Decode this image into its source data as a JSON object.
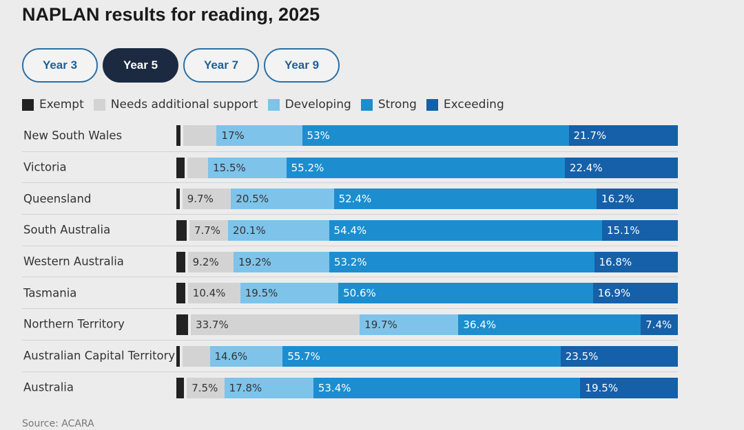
{
  "title": "NAPLAN results for reading, 2025",
  "tabs": [
    {
      "label": "Year 3",
      "active": false
    },
    {
      "label": "Year 5",
      "active": true
    },
    {
      "label": "Year 7",
      "active": false
    },
    {
      "label": "Year 9",
      "active": false
    }
  ],
  "source": "Source: ACARA",
  "colors": {
    "exempt": "#222222",
    "needs": "#d3d3d3",
    "developing": "#7ec3ea",
    "strong": "#1c8ecf",
    "exceeding": "#1560a8",
    "dark_text": "#333333",
    "light_text": "#ffffff"
  },
  "chart_data": {
    "type": "bar",
    "orientation": "horizontal",
    "stacked": true,
    "normalized": true,
    "title": "NAPLAN results for reading, 2025",
    "legend": [
      {
        "key": "exempt",
        "label": "Exempt"
      },
      {
        "key": "needs",
        "label": "Needs additional support"
      },
      {
        "key": "developing",
        "label": "Developing"
      },
      {
        "key": "strong",
        "label": "Strong"
      },
      {
        "key": "exceeding",
        "label": "Exceeding"
      }
    ],
    "categories": [
      "New South Wales",
      "Victoria",
      "Queensland",
      "South Australia",
      "Western Australia",
      "Tasmania",
      "Northern Territory",
      "Australian Capital Territory",
      "Australia"
    ],
    "series": [
      {
        "key": "exempt",
        "name": "Exempt",
        "values": [
          1.4,
          2.2,
          1.2,
          2.6,
          2.3,
          2.3,
          2.9,
          1.2,
          2.1
        ],
        "labels": [
          "",
          "",
          "",
          "",
          "",
          "",
          "",
          "",
          ""
        ]
      },
      {
        "key": "needs",
        "name": "Needs additional support",
        "values": [
          6.6,
          4.1,
          9.7,
          7.7,
          9.2,
          10.4,
          33.7,
          5.5,
          7.5
        ],
        "labels": [
          "",
          "",
          "9.7%",
          "7.7%",
          "9.2%",
          "10.4%",
          "33.7%",
          "",
          "7.5%"
        ]
      },
      {
        "key": "developing",
        "name": "Developing",
        "values": [
          17.0,
          15.5,
          20.5,
          20.1,
          19.2,
          19.5,
          19.7,
          14.6,
          17.8
        ],
        "labels": [
          "17%",
          "15.5%",
          "20.5%",
          "20.1%",
          "19.2%",
          "19.5%",
          "19.7%",
          "14.6%",
          "17.8%"
        ]
      },
      {
        "key": "strong",
        "name": "Strong",
        "values": [
          53.0,
          55.2,
          52.4,
          54.4,
          53.2,
          50.6,
          36.4,
          55.7,
          53.4
        ],
        "labels": [
          "53%",
          "55.2%",
          "52.4%",
          "54.4%",
          "53.2%",
          "50.6%",
          "36.4%",
          "55.7%",
          "53.4%"
        ]
      },
      {
        "key": "exceeding",
        "name": "Exceeding",
        "values": [
          21.7,
          22.4,
          16.2,
          15.1,
          16.8,
          16.9,
          7.4,
          23.5,
          19.5
        ],
        "labels": [
          "21.7%",
          "22.4%",
          "16.2%",
          "15.1%",
          "16.8%",
          "16.9%",
          "7.4%",
          "23.5%",
          "19.5%"
        ]
      }
    ],
    "xlim": [
      0,
      100
    ],
    "grid": false,
    "legend_position": "top-left"
  }
}
